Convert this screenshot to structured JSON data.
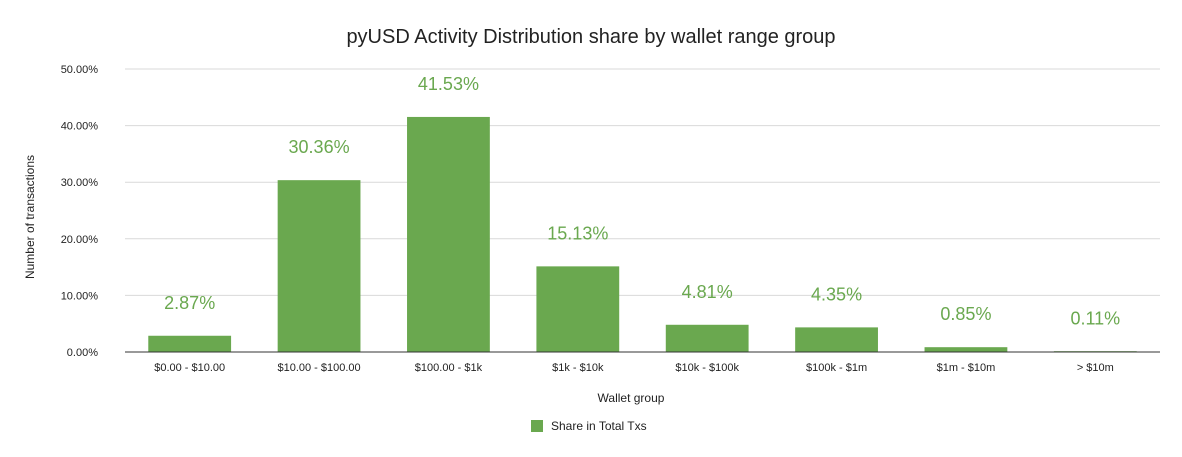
{
  "chart_data": {
    "type": "bar",
    "title": "pyUSD Activity Distribution share by wallet range group",
    "xlabel": "Wallet group",
    "ylabel": "Number of transactions",
    "categories": [
      "$0.00 - $10.00",
      "$10.00 - $100.00",
      "$100.00 - $1k",
      "$1k - $10k",
      "$10k - $100k",
      "$100k - $1m",
      "$1m - $10m",
      "> $10m"
    ],
    "series": [
      {
        "name": "Share in Total Txs",
        "values": [
          2.87,
          30.36,
          41.53,
          15.13,
          4.81,
          4.35,
          0.85,
          0.11
        ],
        "labels": [
          "2.87%",
          "30.36%",
          "41.53%",
          "15.13%",
          "4.81%",
          "4.35%",
          "0.85%",
          "0.11%"
        ],
        "color": "#6aa84f"
      }
    ],
    "yticks": [
      "0.00%",
      "10.00%",
      "20.00%",
      "30.00%",
      "40.00%",
      "50.00%"
    ],
    "ylim": [
      0,
      50
    ],
    "grid": true,
    "legend_position": "bottom",
    "colors": {
      "bar": "#6aa84f",
      "data_label": "#6aa84f",
      "grid": "#d9d9d9",
      "axis": "#333333",
      "text": "#222222"
    }
  }
}
